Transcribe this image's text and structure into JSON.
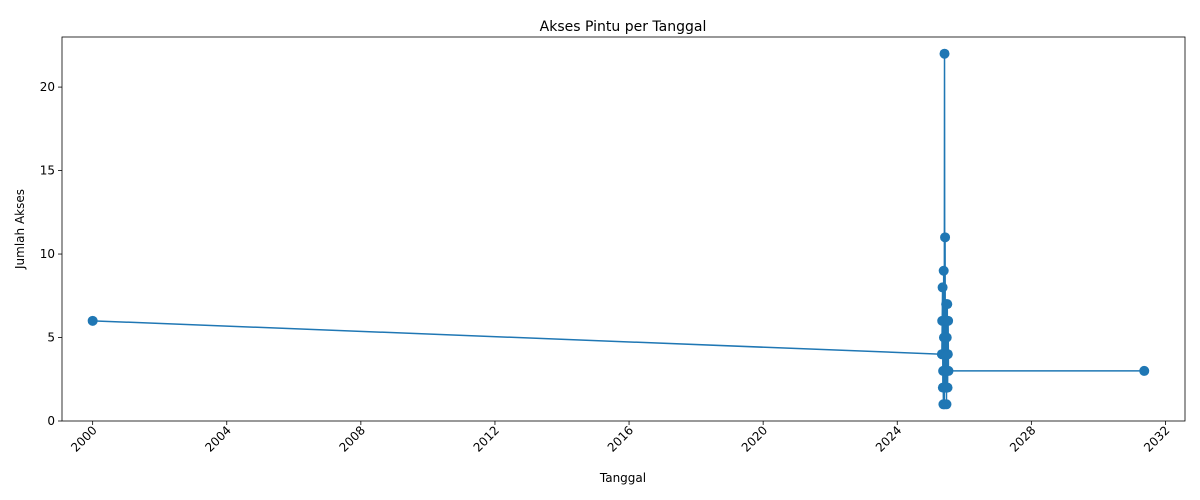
{
  "chart_data": {
    "type": "line",
    "title": "Akses Pintu per Tanggal",
    "xlabel": "Tanggal",
    "ylabel": "Jumlah Akses",
    "x_ticks": [
      "2000",
      "2004",
      "2008",
      "2012",
      "2016",
      "2020",
      "2024",
      "2028",
      "2032"
    ],
    "y_ticks": [
      "0",
      "5",
      "10",
      "15",
      "20"
    ],
    "xlim": [
      "1999-02-01",
      "2032-08-01"
    ],
    "ylim": [
      0,
      23
    ],
    "grid": false,
    "color": "#1f77b4",
    "marker": "circle",
    "series": [
      {
        "points": [
          {
            "x": "2000-01-01",
            "y": 6
          },
          {
            "x": "2025-05-01",
            "y": 4
          },
          {
            "x": "2025-05-05",
            "y": 6
          },
          {
            "x": "2025-05-09",
            "y": 8
          },
          {
            "x": "2025-05-12",
            "y": 2
          },
          {
            "x": "2025-05-15",
            "y": 3
          },
          {
            "x": "2025-05-18",
            "y": 1
          },
          {
            "x": "2025-05-21",
            "y": 9
          },
          {
            "x": "2025-05-24",
            "y": 5
          },
          {
            "x": "2025-05-27",
            "y": 1
          },
          {
            "x": "2025-05-30",
            "y": 22
          },
          {
            "x": "2025-06-02",
            "y": 3
          },
          {
            "x": "2025-06-05",
            "y": 11
          },
          {
            "x": "2025-06-08",
            "y": 2
          },
          {
            "x": "2025-06-11",
            "y": 6
          },
          {
            "x": "2025-06-14",
            "y": 4
          },
          {
            "x": "2025-06-17",
            "y": 7
          },
          {
            "x": "2025-06-20",
            "y": 1
          },
          {
            "x": "2025-06-23",
            "y": 5
          },
          {
            "x": "2025-06-26",
            "y": 3
          },
          {
            "x": "2025-06-29",
            "y": 7
          },
          {
            "x": "2025-07-02",
            "y": 2
          },
          {
            "x": "2025-07-05",
            "y": 4
          },
          {
            "x": "2025-07-08",
            "y": 6
          },
          {
            "x": "2025-07-12",
            "y": 3
          },
          {
            "x": "2031-05-15",
            "y": 3
          }
        ]
      }
    ]
  }
}
